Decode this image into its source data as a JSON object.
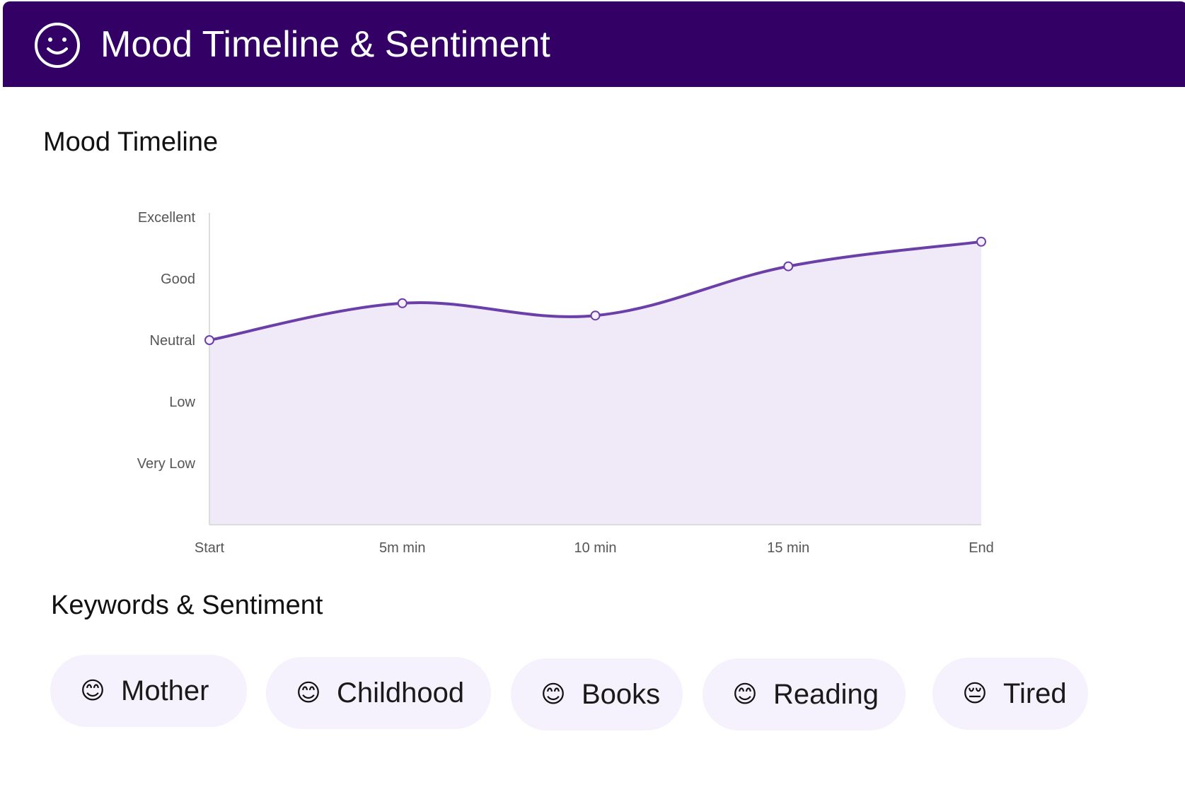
{
  "header": {
    "title": "Mood Timeline & Sentiment",
    "icon": "smiley-icon",
    "background": "#330066"
  },
  "sections": {
    "mood_timeline_title": "Mood Timeline",
    "keywords_title": "Keywords & Sentiment"
  },
  "chart_data": {
    "type": "area",
    "title": "",
    "xlabel": "",
    "ylabel": "",
    "x": [
      "Start",
      "5m min",
      "10 min",
      "15 min",
      "End"
    ],
    "y_categories": [
      "Very Low",
      "Low",
      "Neutral",
      "Good",
      "Excellent"
    ],
    "y_tick_values": [
      1,
      2,
      3,
      4,
      5
    ],
    "ylim": [
      0.0,
      5.0
    ],
    "series": [
      {
        "values": [
          3.0,
          3.6,
          3.4,
          4.2,
          4.6
        ],
        "color": "#6b3fa8",
        "fill": "#f0e9f7"
      }
    ],
    "grid": false,
    "legend": "none"
  },
  "keywords": [
    {
      "label": "Mother",
      "sentiment": "positive",
      "emoji": "😊",
      "icon": "smiling-face-icon"
    },
    {
      "label": "Childhood",
      "sentiment": "positive",
      "emoji": "😊",
      "icon": "smiling-face-icon"
    },
    {
      "label": "Books",
      "sentiment": "positive",
      "emoji": "😊",
      "icon": "smiling-face-icon"
    },
    {
      "label": "Reading",
      "sentiment": "positive",
      "emoji": "😊",
      "icon": "smiling-face-icon"
    },
    {
      "label": "Tired",
      "sentiment": "negative",
      "emoji": "😔",
      "icon": "pensive-face-icon"
    }
  ],
  "colors": {
    "accent": "#6b3fa8",
    "chip_background": "#f5f1fd"
  }
}
